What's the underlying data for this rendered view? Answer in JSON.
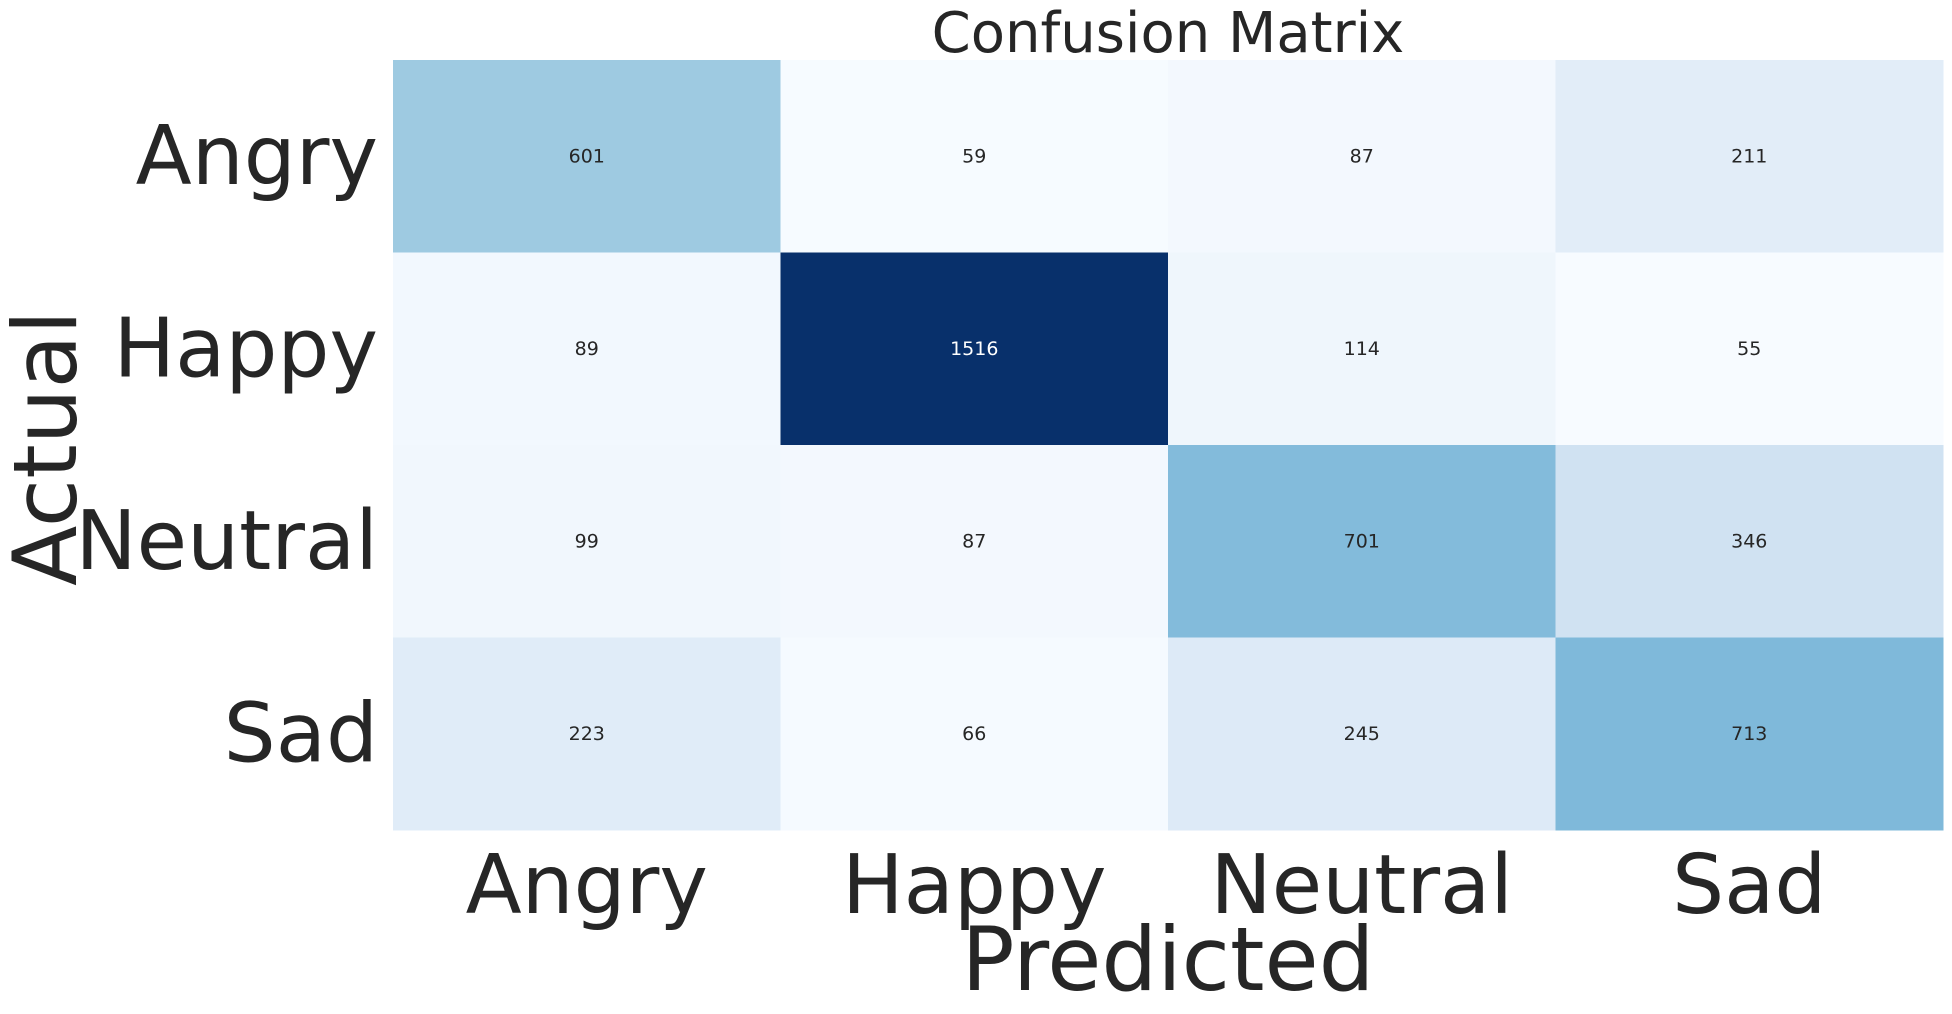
{
  "chart_data": {
    "type": "heatmap",
    "title": "Confusion Matrix",
    "xlabel": "Predicted",
    "ylabel": "Actual",
    "x_categories": [
      "Angry",
      "Happy",
      "Neutral",
      "Sad"
    ],
    "y_categories": [
      "Angry",
      "Happy",
      "Neutral",
      "Sad"
    ],
    "values": [
      [
        601,
        59,
        87,
        211
      ],
      [
        89,
        1516,
        114,
        55
      ],
      [
        99,
        87,
        701,
        346
      ],
      [
        223,
        66,
        245,
        713
      ]
    ],
    "colormap": "Blues",
    "colorbar": false,
    "grid": false,
    "value_range": [
      55,
      1516
    ],
    "colors": {
      "low": "#f7fbff",
      "high": "#08306b",
      "text_dark": "#262626",
      "text_light": "#ffffff"
    }
  }
}
